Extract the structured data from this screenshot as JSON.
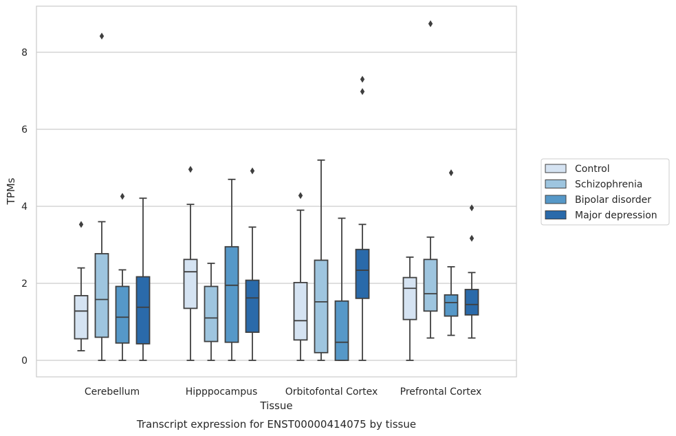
{
  "caption": "Transcript expression for ENST00000414075 by tissue",
  "chart_data": {
    "type": "box",
    "xlabel": "Tissue",
    "ylabel": "TPMs",
    "ylim": [
      -0.4,
      9.2
    ],
    "yticks": [
      0,
      2,
      4,
      6,
      8
    ],
    "grid": "horizontal",
    "legend_position": "right",
    "categories": [
      "Cerebellum",
      "Hipppocampus",
      "Orbitofontal Cortex",
      "Prefrontal Cortex"
    ],
    "series": [
      {
        "name": "Control",
        "color": "#d5e3f2",
        "boxes": [
          {
            "whislo": 0.25,
            "q1": 0.56,
            "med": 1.28,
            "q3": 1.68,
            "whishi": 2.4,
            "fliers": [
              3.53
            ]
          },
          {
            "whislo": 0.0,
            "q1": 1.35,
            "med": 2.3,
            "q3": 2.62,
            "whishi": 4.05,
            "fliers": [
              4.96
            ]
          },
          {
            "whislo": 0.0,
            "q1": 0.53,
            "med": 1.03,
            "q3": 2.02,
            "whishi": 3.9,
            "fliers": [
              4.28
            ]
          },
          {
            "whislo": 0.0,
            "q1": 1.06,
            "med": 1.87,
            "q3": 2.15,
            "whishi": 2.68,
            "fliers": []
          }
        ]
      },
      {
        "name": "Schizophrenia",
        "color": "#9ec5df",
        "boxes": [
          {
            "whislo": 0.0,
            "q1": 0.6,
            "med": 1.58,
            "q3": 2.77,
            "whishi": 3.6,
            "fliers": [
              8.42
            ]
          },
          {
            "whislo": 0.0,
            "q1": 0.49,
            "med": 1.1,
            "q3": 1.92,
            "whishi": 2.52,
            "fliers": []
          },
          {
            "whislo": 0.0,
            "q1": 0.2,
            "med": 1.52,
            "q3": 2.6,
            "whishi": 5.2,
            "fliers": []
          },
          {
            "whislo": 0.58,
            "q1": 1.28,
            "med": 1.73,
            "q3": 2.62,
            "whishi": 3.2,
            "fliers": [
              8.74
            ]
          }
        ]
      },
      {
        "name": "Bipolar disorder",
        "color": "#5698c8",
        "boxes": [
          {
            "whislo": 0.0,
            "q1": 0.45,
            "med": 1.12,
            "q3": 1.92,
            "whishi": 2.35,
            "fliers": [
              4.26
            ]
          },
          {
            "whislo": 0.0,
            "q1": 0.47,
            "med": 1.95,
            "q3": 2.95,
            "whishi": 4.7,
            "fliers": []
          },
          {
            "whislo": 0.0,
            "q1": 0.0,
            "med": 0.47,
            "q3": 1.54,
            "whishi": 3.69,
            "fliers": []
          },
          {
            "whislo": 0.65,
            "q1": 1.15,
            "med": 1.5,
            "q3": 1.7,
            "whishi": 2.43,
            "fliers": [
              4.87
            ]
          }
        ]
      },
      {
        "name": "Major depression",
        "color": "#2a6aaa",
        "boxes": [
          {
            "whislo": 0.0,
            "q1": 0.43,
            "med": 1.38,
            "q3": 2.17,
            "whishi": 4.21,
            "fliers": []
          },
          {
            "whislo": 0.0,
            "q1": 0.73,
            "med": 1.62,
            "q3": 2.08,
            "whishi": 3.46,
            "fliers": [
              4.92
            ]
          },
          {
            "whislo": 0.0,
            "q1": 1.61,
            "med": 2.34,
            "q3": 2.88,
            "whishi": 3.53,
            "fliers": [
              6.98,
              7.3
            ]
          },
          {
            "whislo": 0.58,
            "q1": 1.18,
            "med": 1.45,
            "q3": 1.84,
            "whishi": 2.28,
            "fliers": [
              3.17,
              3.96
            ]
          }
        ]
      }
    ]
  }
}
